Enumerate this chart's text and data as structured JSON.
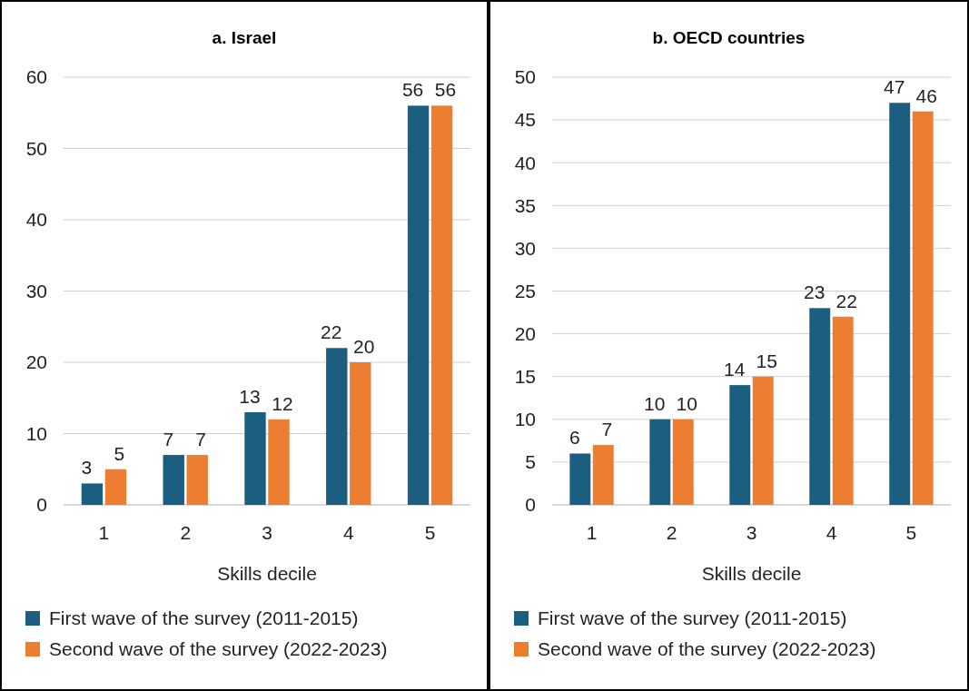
{
  "chart_data": [
    {
      "type": "bar",
      "title": "a. Israel",
      "xlabel": "Skills decile",
      "categories": [
        "1",
        "2",
        "3",
        "4",
        "5"
      ],
      "series": [
        {
          "name": "First wave of the survey (2011-2015)",
          "color": "#1b5e80",
          "values": [
            3,
            7,
            13,
            22,
            56
          ]
        },
        {
          "name": "Second wave of the survey (2022-2023)",
          "color": "#ed7d31",
          "values": [
            5,
            7,
            12,
            20,
            56
          ]
        }
      ],
      "ylim": [
        0,
        60
      ],
      "yticks": [
        0,
        10,
        20,
        30,
        40,
        50,
        60
      ],
      "grid": "y",
      "legend": "bottom",
      "data_labels": true
    },
    {
      "type": "bar",
      "title": "b. OECD countries",
      "xlabel": "Skills decile",
      "categories": [
        "1",
        "2",
        "3",
        "4",
        "5"
      ],
      "series": [
        {
          "name": "First wave of the survey (2011-2015)",
          "color": "#1b5e80",
          "values": [
            6,
            10,
            14,
            23,
            47
          ]
        },
        {
          "name": "Second wave of the survey (2022-2023)",
          "color": "#ed7d31",
          "values": [
            7,
            10,
            15,
            22,
            46
          ]
        }
      ],
      "ylim": [
        0,
        50
      ],
      "yticks": [
        0,
        5,
        10,
        15,
        20,
        25,
        30,
        35,
        40,
        45,
        50
      ],
      "grid": "y",
      "legend": "bottom",
      "data_labels": true
    }
  ]
}
